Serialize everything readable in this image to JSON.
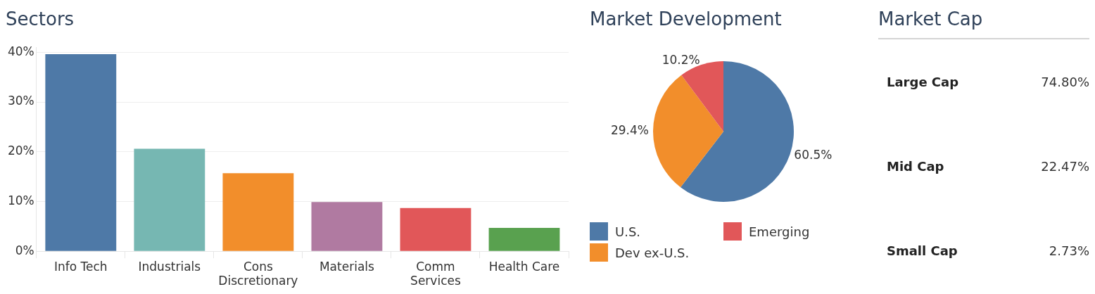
{
  "chart_data": [
    {
      "type": "bar",
      "title": "Sectors",
      "categories": [
        "Info Tech",
        "Industrials",
        "Cons Discretionary",
        "Materials",
        "Comm Services",
        "Health Care"
      ],
      "values": [
        39.6,
        20.6,
        15.7,
        9.9,
        8.7,
        4.7
      ],
      "colors": [
        "#4e79a7",
        "#76b7b2",
        "#f28e2b",
        "#b07aa1",
        "#e15759",
        "#59a14f"
      ],
      "ylim": [
        0,
        41
      ],
      "yticks": [
        {
          "value": 0,
          "label": "0%"
        },
        {
          "value": 10,
          "label": "10%"
        },
        {
          "value": 20,
          "label": "20%"
        },
        {
          "value": 30,
          "label": "30%"
        },
        {
          "value": 40,
          "label": "40%"
        }
      ],
      "grid": "y",
      "legend": false
    },
    {
      "type": "pie",
      "title": "Market Development",
      "categories": [
        "U.S.",
        "Dev ex-U.S.",
        "Emerging"
      ],
      "values": [
        60.5,
        29.4,
        10.2
      ],
      "value_labels": [
        "60.5%",
        "29.4%",
        "10.2%"
      ],
      "colors": [
        "#4e79a7",
        "#f28e2b",
        "#e15759"
      ],
      "legend": "bottom"
    },
    {
      "type": "other",
      "title": "Market Cap",
      "categories": [
        "Large Cap",
        "Mid Cap",
        "Small Cap"
      ],
      "value_labels": [
        "74.80%",
        "22.47%",
        "2.73%"
      ]
    }
  ]
}
